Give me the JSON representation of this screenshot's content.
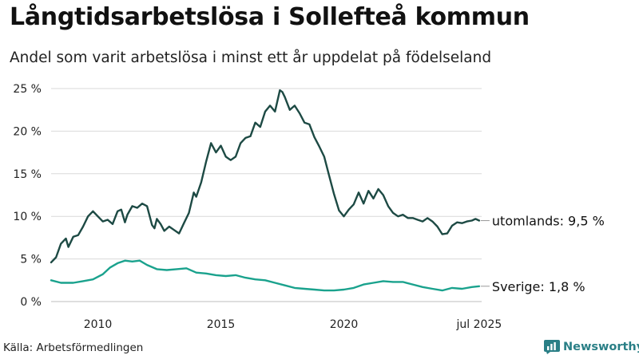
{
  "header": {
    "title": "Långtidsarbetslösa i Sollefteå kommun",
    "subtitle": "Andel som varit arbetslösa i minst ett år uppdelat på födelseland"
  },
  "footer": {
    "source": "Källa: Arbetsförmedlingen",
    "brand": "Newsworthy"
  },
  "colors": {
    "utomlands": "#1d4a44",
    "sverige": "#1aa28d",
    "grid": "#d9d9d9",
    "brand": "#2a7f86"
  },
  "icons": {
    "brand_logo": "bar-chart-icon"
  },
  "chart_data": {
    "type": "line",
    "title": "Långtidsarbetslösa i Sollefteå kommun",
    "subtitle": "Andel som varit arbetslösa i minst ett år uppdelat på födelseland",
    "xlabel": "",
    "ylabel": "",
    "ylim": [
      0,
      25
    ],
    "xlim": [
      2008.1,
      2025.6
    ],
    "grid": true,
    "legend": "direct end labels",
    "x_ticks": [
      {
        "value": 2010,
        "label": "2010"
      },
      {
        "value": 2015,
        "label": "2015"
      },
      {
        "value": 2020,
        "label": "2020"
      },
      {
        "value": 2025.5,
        "label": "jul 2025"
      }
    ],
    "y_ticks": [
      {
        "value": 0,
        "label": "0 %"
      },
      {
        "value": 5,
        "label": "5 %"
      },
      {
        "value": 10,
        "label": "10 %"
      },
      {
        "value": 15,
        "label": "15 %"
      },
      {
        "value": 20,
        "label": "20 %"
      },
      {
        "value": 25,
        "label": "25 %"
      }
    ],
    "series": [
      {
        "key": "utomlands",
        "end_label": "utomlands: 9,5 %",
        "x": [
          2008.1,
          2008.3,
          2008.5,
          2008.7,
          2008.8,
          2009.0,
          2009.2,
          2009.4,
          2009.6,
          2009.8,
          2010.0,
          2010.2,
          2010.4,
          2010.6,
          2010.8,
          2010.95,
          2011.1,
          2011.2,
          2011.4,
          2011.6,
          2011.8,
          2012.0,
          2012.2,
          2012.3,
          2012.4,
          2012.55,
          2012.7,
          2012.9,
          2013.1,
          2013.3,
          2013.5,
          2013.7,
          2013.9,
          2014.0,
          2014.2,
          2014.4,
          2014.6,
          2014.8,
          2015.0,
          2015.2,
          2015.4,
          2015.6,
          2015.8,
          2016.0,
          2016.2,
          2016.4,
          2016.6,
          2016.8,
          2017.0,
          2017.2,
          2017.4,
          2017.5,
          2017.6,
          2017.8,
          2018.0,
          2018.2,
          2018.4,
          2018.6,
          2018.8,
          2019.0,
          2019.2,
          2019.4,
          2019.6,
          2019.8,
          2020.0,
          2020.2,
          2020.4,
          2020.6,
          2020.8,
          2021.0,
          2021.2,
          2021.4,
          2021.6,
          2021.8,
          2022.0,
          2022.2,
          2022.4,
          2022.6,
          2022.8,
          2023.0,
          2023.2,
          2023.4,
          2023.6,
          2023.8,
          2024.0,
          2024.2,
          2024.4,
          2024.6,
          2024.8,
          2025.0,
          2025.2,
          2025.35,
          2025.5
        ],
        "values": [
          4.6,
          5.2,
          6.8,
          7.4,
          6.4,
          7.6,
          7.8,
          8.8,
          10.0,
          10.6,
          10.0,
          9.4,
          9.6,
          9.1,
          10.6,
          10.8,
          9.3,
          10.2,
          11.2,
          11.0,
          11.5,
          11.2,
          9.0,
          8.6,
          9.7,
          9.1,
          8.3,
          8.8,
          8.4,
          8.0,
          9.2,
          10.4,
          12.8,
          12.3,
          14.0,
          16.4,
          18.6,
          17.5,
          18.3,
          17.0,
          16.6,
          17.0,
          18.6,
          19.2,
          19.4,
          21.0,
          20.5,
          22.3,
          23.0,
          22.3,
          24.8,
          24.6,
          24.0,
          22.5,
          23.0,
          22.1,
          21.0,
          20.8,
          19.3,
          18.2,
          17.0,
          14.8,
          12.6,
          10.7,
          10.0,
          10.8,
          11.4,
          12.8,
          11.5,
          13.0,
          12.1,
          13.2,
          12.5,
          11.2,
          10.4,
          10.0,
          10.2,
          9.8,
          9.8,
          9.6,
          9.4,
          9.8,
          9.4,
          8.8,
          7.9,
          8.0,
          8.9,
          9.3,
          9.2,
          9.4,
          9.5,
          9.7,
          9.5
        ]
      },
      {
        "key": "sverige",
        "end_label": "Sverige: 1,8 %",
        "x": [
          2008.1,
          2008.5,
          2009.0,
          2009.4,
          2009.8,
          2010.2,
          2010.5,
          2010.8,
          2011.1,
          2011.4,
          2011.7,
          2012.0,
          2012.4,
          2012.8,
          2013.2,
          2013.6,
          2014.0,
          2014.4,
          2014.8,
          2015.2,
          2015.6,
          2016.0,
          2016.4,
          2016.8,
          2017.2,
          2017.6,
          2018.0,
          2018.4,
          2018.8,
          2019.2,
          2019.6,
          2020.0,
          2020.4,
          2020.8,
          2021.2,
          2021.6,
          2022.0,
          2022.4,
          2022.8,
          2023.2,
          2023.6,
          2024.0,
          2024.4,
          2024.8,
          2025.2,
          2025.5
        ],
        "values": [
          2.5,
          2.2,
          2.2,
          2.4,
          2.6,
          3.2,
          4.0,
          4.5,
          4.8,
          4.7,
          4.8,
          4.3,
          3.8,
          3.7,
          3.8,
          3.9,
          3.4,
          3.3,
          3.1,
          3.0,
          3.1,
          2.8,
          2.6,
          2.5,
          2.2,
          1.9,
          1.6,
          1.5,
          1.4,
          1.3,
          1.3,
          1.4,
          1.6,
          2.0,
          2.2,
          2.4,
          2.3,
          2.3,
          2.0,
          1.7,
          1.5,
          1.3,
          1.6,
          1.5,
          1.7,
          1.8
        ]
      }
    ]
  }
}
